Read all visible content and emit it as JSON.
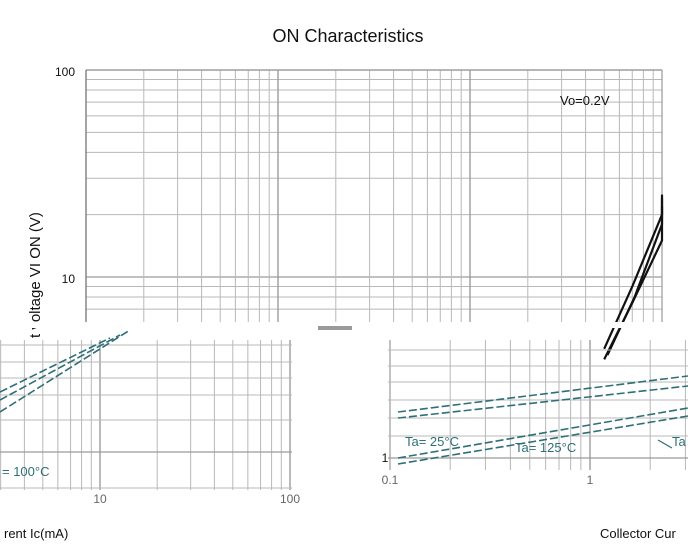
{
  "chart_data": [
    {
      "type": "line",
      "title": "ON Characteristics",
      "ylabel": "t voltage VI ON (V)",
      "yscale": "log",
      "ylim": [
        1,
        100
      ],
      "y_ticks": [
        "100",
        "10"
      ],
      "annotation": "Vo=0.2V",
      "grid": true,
      "series": [
        {
          "x": [
            5,
            7,
            10,
            12
          ],
          "y": [
            4.5,
            9,
            20,
            25
          ]
        },
        {
          "x": [
            5.2,
            7.2,
            10,
            12
          ],
          "y": [
            4.2,
            8,
            18,
            24
          ]
        },
        {
          "x": [
            5,
            7,
            10,
            12
          ],
          "y": [
            4.0,
            7.5,
            15,
            22
          ]
        }
      ]
    },
    {
      "type": "line",
      "xlabel": "rent Ic(mA)",
      "xscale": "log",
      "x_ticks": [
        "10",
        "100"
      ],
      "annotations": [
        "= 100°C"
      ]
    },
    {
      "type": "line",
      "xlabel": "Collector Cur",
      "xscale": "log",
      "x_ticks": [
        "0.1",
        "1"
      ],
      "y_ticks": [
        "1"
      ],
      "annotations": [
        "Ta= 25°C",
        "Ta= 125°C",
        "Ta"
      ]
    }
  ]
}
